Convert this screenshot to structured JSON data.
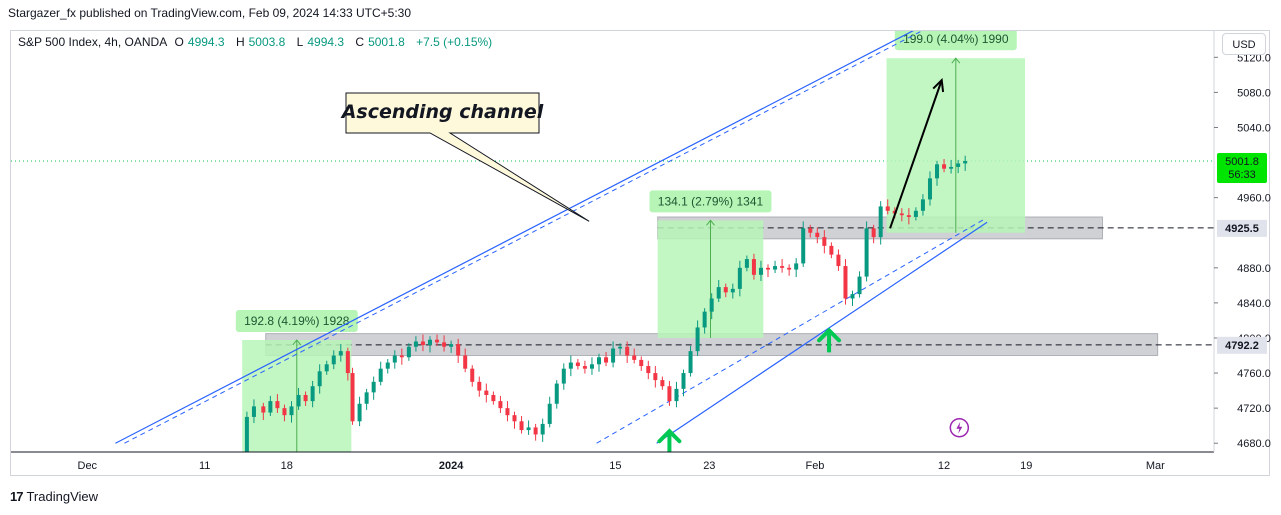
{
  "header": {
    "publisher": "Stargazer_fx published on TradingView.com, Feb 09, 2024 14:33 UTC+5:30"
  },
  "symbol": {
    "name": "S&P 500 Index, 4h, OANDA",
    "open_label": "O",
    "open": "4994.3",
    "high_label": "H",
    "high": "5003.8",
    "low_label": "L",
    "low": "4994.3",
    "close_label": "C",
    "close": "5001.8",
    "change": "+7.5 (+0.15%)"
  },
  "currency_button": "USD",
  "price_axis": {
    "ticks": [
      {
        "value": 5120,
        "label": "5120.0"
      },
      {
        "value": 5080,
        "label": "5080.0"
      },
      {
        "value": 5040,
        "label": "5040.0"
      },
      {
        "value": 4960,
        "label": "4960.0"
      },
      {
        "value": 4880,
        "label": "4880.0"
      },
      {
        "value": 4840,
        "label": "4840.0"
      },
      {
        "value": 4800,
        "label": "4800.0"
      },
      {
        "value": 4760,
        "label": "4760.0"
      },
      {
        "value": 4720,
        "label": "4720.0"
      },
      {
        "value": 4680,
        "label": "4680.0"
      }
    ],
    "current_price": {
      "value": 5001.8,
      "label": "5001.8",
      "countdown": "56:33",
      "color": "#00e500"
    },
    "level_badges": [
      {
        "value": 4925.5,
        "label": "4925.5"
      },
      {
        "value": 4792.2,
        "label": "4792.2"
      }
    ]
  },
  "time_axis": {
    "labels": [
      {
        "label": "Dec",
        "day": 0
      },
      {
        "label": "11",
        "day": 10
      },
      {
        "label": "18",
        "day": 17
      },
      {
        "label": "2024",
        "day": 31,
        "bold": true
      },
      {
        "label": "15",
        "day": 45
      },
      {
        "label": "23",
        "day": 53
      },
      {
        "label": "Feb",
        "day": 62
      },
      {
        "label": "12",
        "day": 73
      },
      {
        "label": "19",
        "day": 80
      },
      {
        "label": "Mar",
        "day": 91
      }
    ]
  },
  "annotations": {
    "callout_text": "Ascending channel",
    "measure_boxes": [
      {
        "label": "192.8 (4.19%) 1928",
        "from_day": 13.2,
        "to_day": 22.5,
        "low": 4604.9,
        "high": 4797.7
      },
      {
        "label": "134.1 (2.79%) 1341",
        "from_day": 48.6,
        "to_day": 57.6,
        "low": 4800.0,
        "high": 4934.1
      },
      {
        "label": "199.0 (4.04%) 1990",
        "from_day": 68.1,
        "to_day": 79.9,
        "low": 4920.0,
        "high": 5119.0
      }
    ],
    "zones": [
      {
        "name": "resistance-turned-support",
        "from_day": 15.2,
        "to_day": 91.2,
        "low": 4780,
        "high": 4805,
        "line": 4792.2
      },
      {
        "name": "upper-support",
        "from_day": 48.6,
        "to_day": 86.5,
        "low": 4913,
        "high": 4938,
        "line": 4925.5
      }
    ],
    "channel": {
      "upper": {
        "start_day": 2.4,
        "start_price": 4680,
        "end_day": 76.1,
        "end_price": 5190
      },
      "lower": {
        "start_day": 43.4,
        "start_price": 4680,
        "end_day": 76.5,
        "end_price": 4936
      }
    },
    "projection_arrow": {
      "from_day": 68.4,
      "from_price": 4925,
      "to_day": 72.8,
      "to_price": 5094
    },
    "up_arrows": [
      {
        "day": 49.6,
        "price": 4680
      },
      {
        "day": 63.2,
        "price": 4795
      }
    ],
    "event_icon": {
      "day": 74.3,
      "price": 4684,
      "color": "#9c27b0"
    }
  },
  "colors": {
    "up": "#089981",
    "down": "#f23645",
    "channel": "#2962ff",
    "measure_fill": "#b7f5b7",
    "zone_fill": "#9598a1",
    "current_line": "#00c853"
  },
  "chart_data": {
    "type": "candlestick",
    "title": "S&P 500 Index, 4h, OANDA",
    "y_range": [
      4670,
      5150
    ],
    "x_range_days": [
      -6.5,
      96
    ],
    "current_price": 5001.8,
    "closes": [
      [
        13.2,
        4665
      ],
      [
        13.6,
        4710
      ],
      [
        14.2,
        4722
      ],
      [
        15.0,
        4715
      ],
      [
        15.6,
        4728
      ],
      [
        16.2,
        4720
      ],
      [
        16.8,
        4712
      ],
      [
        17.4,
        4722
      ],
      [
        18.0,
        4735
      ],
      [
        18.6,
        4728
      ],
      [
        19.2,
        4745
      ],
      [
        19.8,
        4762
      ],
      [
        20.4,
        4770
      ],
      [
        21.0,
        4780
      ],
      [
        21.6,
        4785
      ],
      [
        22.2,
        4760
      ],
      [
        22.6,
        4705
      ],
      [
        23.2,
        4725
      ],
      [
        23.8,
        4738
      ],
      [
        24.4,
        4750
      ],
      [
        25.0,
        4765
      ],
      [
        25.6,
        4772
      ],
      [
        26.2,
        4780
      ],
      [
        26.8,
        4778
      ],
      [
        27.4,
        4790
      ],
      [
        28.0,
        4796
      ],
      [
        28.6,
        4792
      ],
      [
        29.2,
        4798
      ],
      [
        29.8,
        4795
      ],
      [
        30.4,
        4790
      ],
      [
        31.0,
        4793
      ],
      [
        31.6,
        4780
      ],
      [
        32.2,
        4765
      ],
      [
        32.8,
        4750
      ],
      [
        33.4,
        4740
      ],
      [
        34.0,
        4735
      ],
      [
        34.6,
        4728
      ],
      [
        35.2,
        4720
      ],
      [
        35.8,
        4712
      ],
      [
        36.4,
        4705
      ],
      [
        37.0,
        4695
      ],
      [
        37.6,
        4698
      ],
      [
        38.2,
        4690
      ],
      [
        38.8,
        4702
      ],
      [
        39.4,
        4725
      ],
      [
        40.0,
        4748
      ],
      [
        40.6,
        4765
      ],
      [
        41.2,
        4772
      ],
      [
        41.8,
        4768
      ],
      [
        42.4,
        4765
      ],
      [
        43.0,
        4770
      ],
      [
        43.6,
        4778
      ],
      [
        44.2,
        4772
      ],
      [
        44.8,
        4788
      ],
      [
        45.4,
        4790
      ],
      [
        46.0,
        4780
      ],
      [
        46.6,
        4775
      ],
      [
        47.2,
        4768
      ],
      [
        47.8,
        4760
      ],
      [
        48.4,
        4752
      ],
      [
        49.0,
        4745
      ],
      [
        49.6,
        4728
      ],
      [
        50.2,
        4742
      ],
      [
        50.8,
        4760
      ],
      [
        51.4,
        4785
      ],
      [
        52.0,
        4812
      ],
      [
        52.6,
        4830
      ],
      [
        53.2,
        4845
      ],
      [
        53.8,
        4858
      ],
      [
        54.4,
        4852
      ],
      [
        55.0,
        4856
      ],
      [
        55.6,
        4880
      ],
      [
        56.2,
        4890
      ],
      [
        56.8,
        4872
      ],
      [
        57.4,
        4880
      ],
      [
        58.0,
        4878
      ],
      [
        58.6,
        4882
      ],
      [
        59.2,
        4880
      ],
      [
        59.8,
        4878
      ],
      [
        60.4,
        4885
      ],
      [
        61.0,
        4925
      ],
      [
        61.6,
        4920
      ],
      [
        62.2,
        4915
      ],
      [
        62.8,
        4905
      ],
      [
        63.4,
        4895
      ],
      [
        64.0,
        4882
      ],
      [
        64.6,
        4845
      ],
      [
        65.2,
        4850
      ],
      [
        65.8,
        4870
      ],
      [
        66.4,
        4925
      ],
      [
        67.0,
        4915
      ],
      [
        67.6,
        4950
      ],
      [
        68.2,
        4945
      ],
      [
        68.8,
        4942
      ],
      [
        69.4,
        4940
      ],
      [
        70.0,
        4938
      ],
      [
        70.6,
        4945
      ],
      [
        71.2,
        4958
      ],
      [
        71.8,
        4982
      ],
      [
        72.4,
        4998
      ],
      [
        73.0,
        4993
      ],
      [
        73.6,
        4995
      ],
      [
        74.2,
        4999
      ],
      [
        74.8,
        5001.8
      ]
    ]
  }
}
